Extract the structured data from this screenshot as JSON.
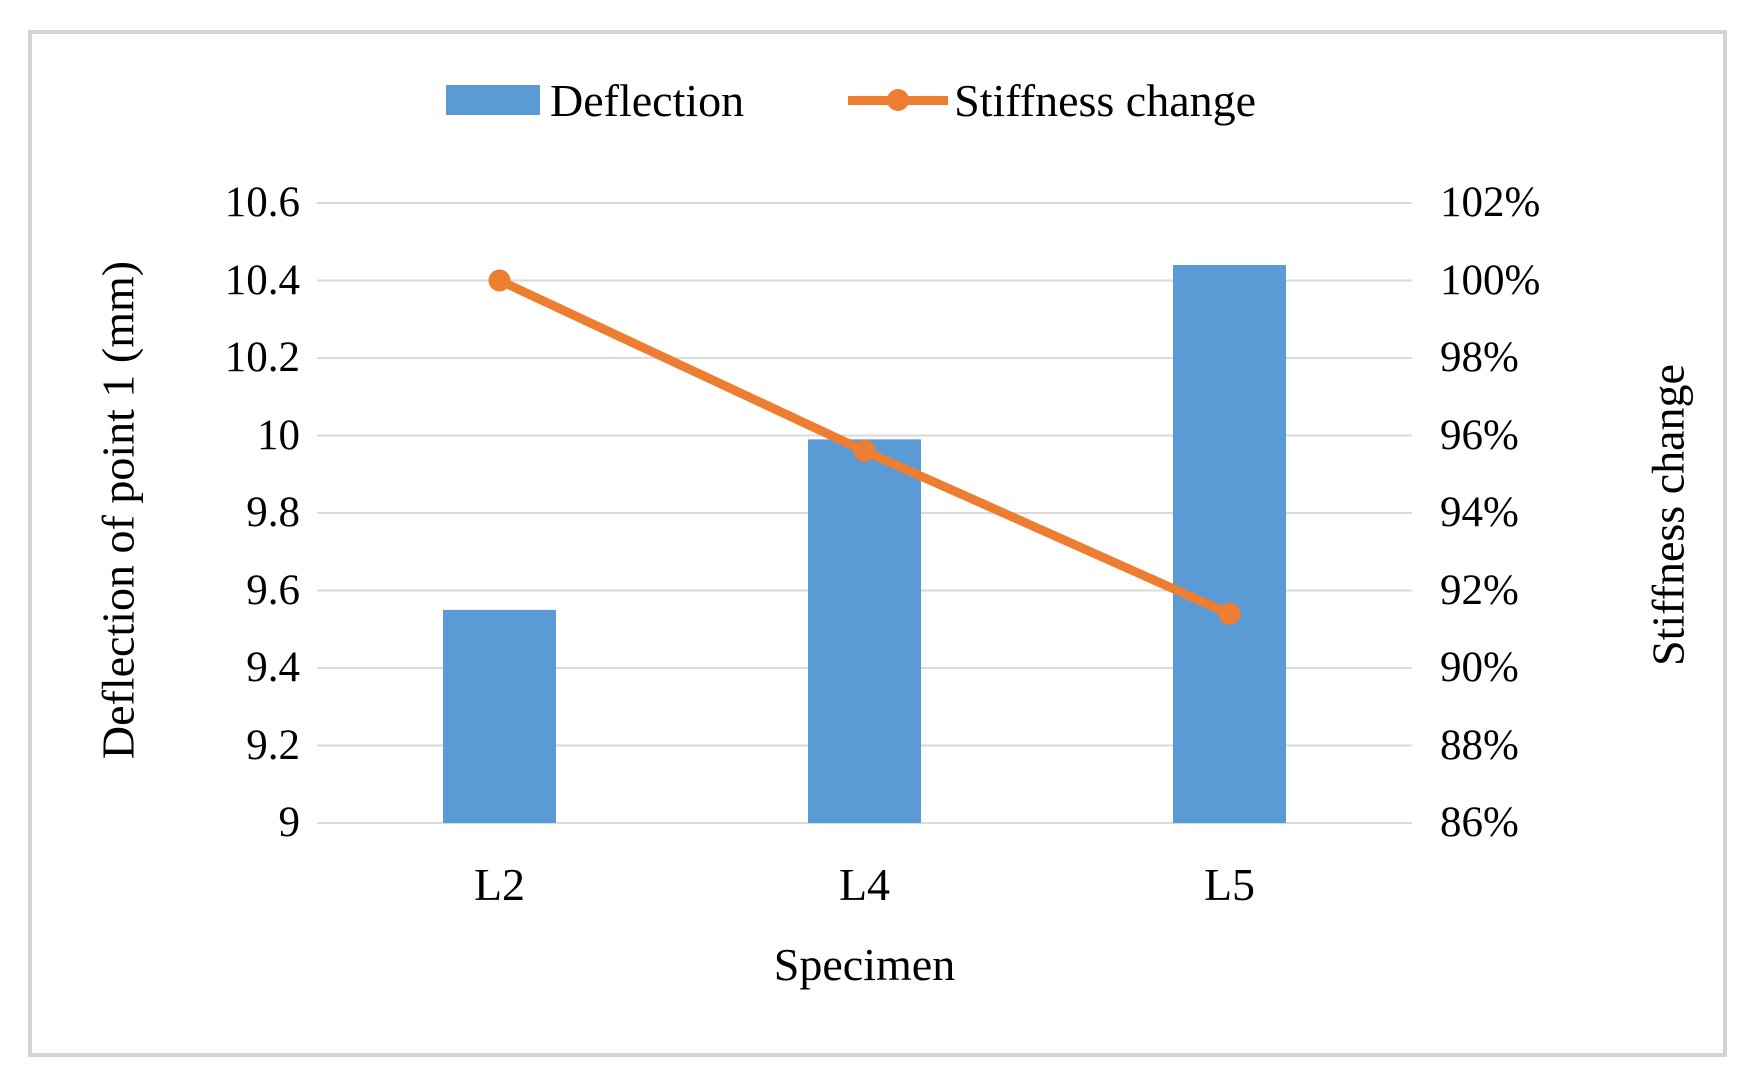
{
  "chart_data": {
    "type": "combo",
    "title": "",
    "categories": [
      "L2",
      "L4",
      "L5"
    ],
    "series": [
      {
        "name": "Deflection",
        "type": "bar",
        "axis": "left",
        "color": "#5B9BD5",
        "values": [
          9.55,
          9.99,
          10.44
        ]
      },
      {
        "name": "Stiffness change",
        "type": "line",
        "axis": "right",
        "color": "#ED7D31",
        "unit": "%",
        "values": [
          100,
          95.6,
          91.4
        ]
      }
    ],
    "xlabel": "Specimen",
    "left_axis": {
      "label": "Deflection of point 1 (mm)",
      "min": 9,
      "max": 10.6,
      "step": 0.2,
      "ticks": [
        "10.6",
        "10.4",
        "10.2",
        "10",
        "9.8",
        "9.6",
        "9.4",
        "9.2",
        "9"
      ]
    },
    "right_axis": {
      "label": "Stiffness change",
      "min": 86,
      "max": 102,
      "step": 2,
      "ticks": [
        "102%",
        "100%",
        "98%",
        "96%",
        "94%",
        "92%",
        "90%",
        "88%",
        "86%"
      ]
    },
    "legend": {
      "position": "top",
      "entries": [
        "Deflection",
        "Stiffness change"
      ]
    },
    "grid": "horizontal",
    "colors": {
      "bar": "#5B9BD5",
      "line": "#ED7D31",
      "gridline": "#D9D9D9",
      "frame_border": "#D4D4D4",
      "background": "#FFFFFF",
      "text": "#000000"
    }
  }
}
